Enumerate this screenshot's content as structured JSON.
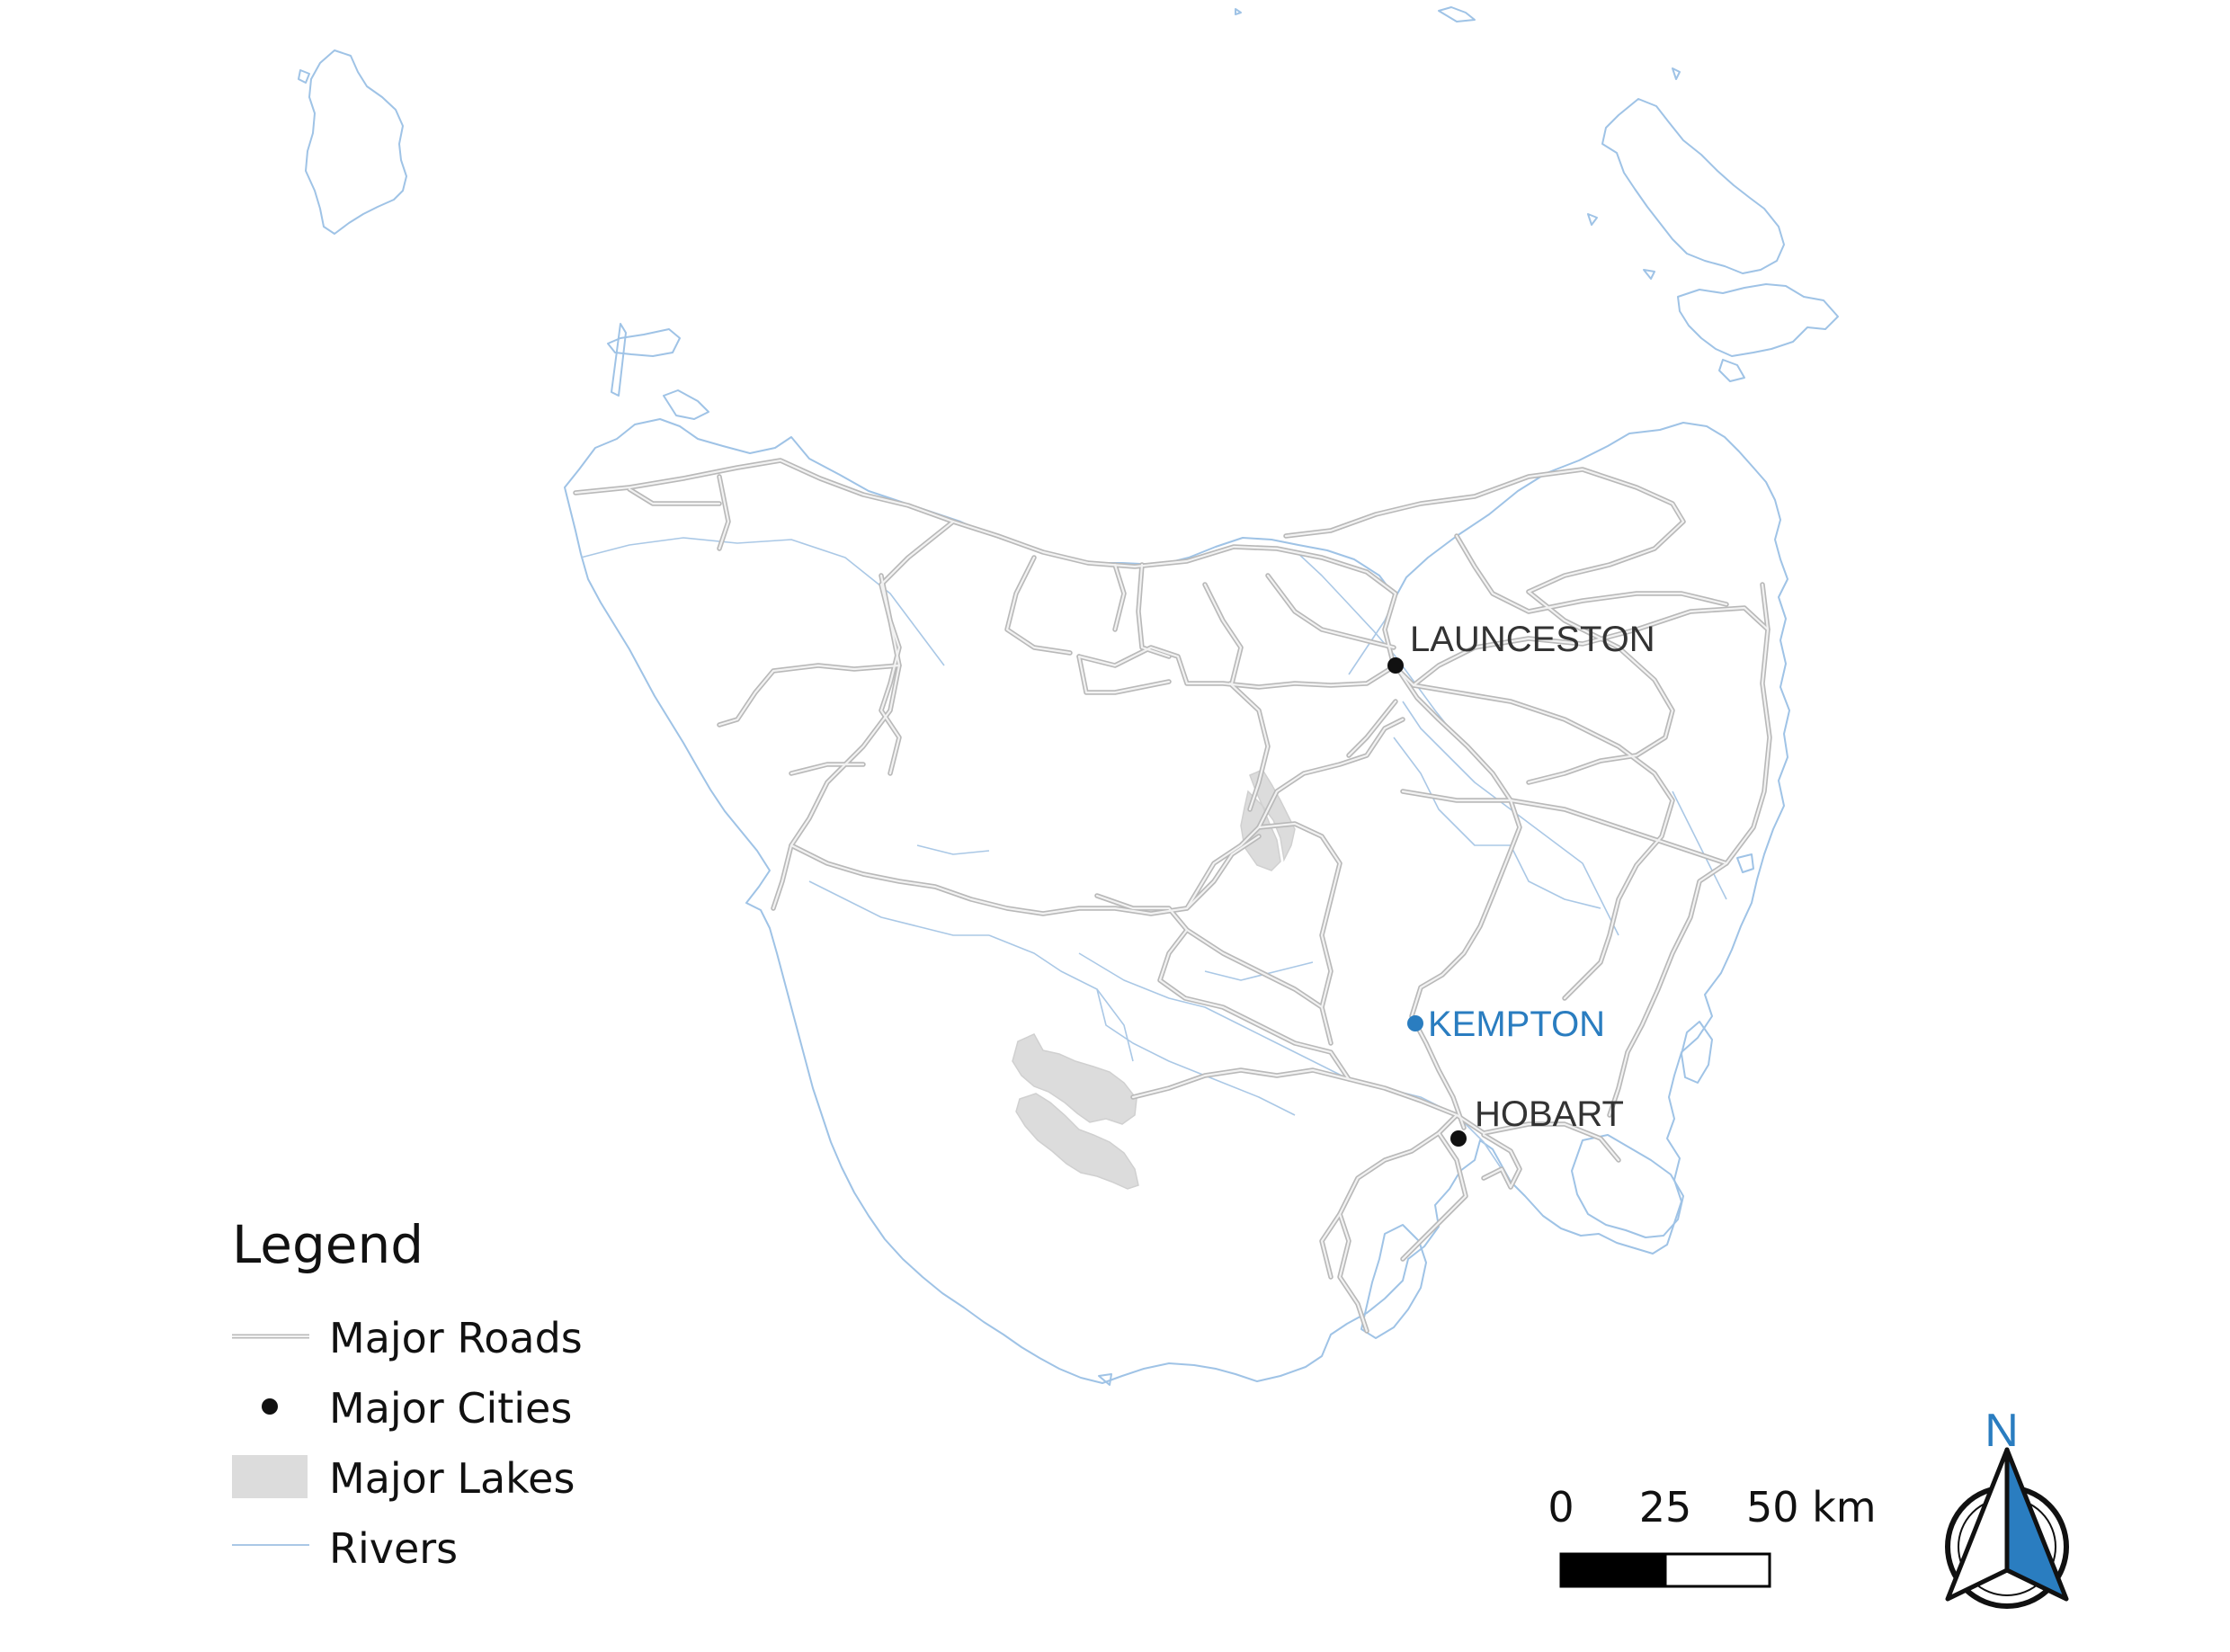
{
  "colors": {
    "river": "#aac8e6",
    "road": "#b9b9b9",
    "lake": "#dcdcdc",
    "city": "#111111",
    "highlight": "#2a7dc0",
    "label": "#333333"
  },
  "cities": [
    {
      "name": "LAUNCESTON",
      "highlight": false
    },
    {
      "name": "KEMPTON",
      "highlight": true
    },
    {
      "name": "HOBART",
      "highlight": false
    }
  ],
  "legend": {
    "title": "Legend",
    "items": [
      {
        "label": "Major Roads",
        "symbol": "line"
      },
      {
        "label": "Major Cities",
        "symbol": "point"
      },
      {
        "label": "Major Lakes",
        "symbol": "polygon"
      },
      {
        "label": "Rivers",
        "symbol": "line"
      }
    ]
  },
  "scale_bar": {
    "ticks": [
      "0",
      "25",
      "50 km"
    ]
  },
  "north_arrow": {
    "label": "N",
    "icon": "north-arrow-icon"
  }
}
